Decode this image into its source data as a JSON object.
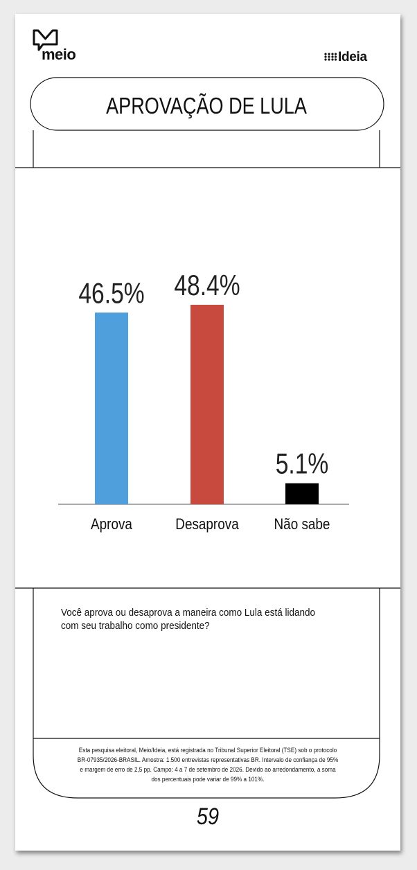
{
  "brand": {
    "left_logo": "meio",
    "right_logo": "Ideia"
  },
  "title": "APROVAÇÃO DE LULA",
  "chart_data": {
    "type": "bar",
    "categories": [
      "Aprova",
      "Desaprova",
      "Não sabe"
    ],
    "values": [
      46.5,
      48.4,
      5.1
    ],
    "value_labels": [
      "46.5%",
      "48.4%",
      "5.1%"
    ],
    "colors": [
      "#4f9fdc",
      "#c84a3e",
      "#000000"
    ],
    "title": "APROVAÇÃO DE LULA",
    "xlabel": "",
    "ylabel": "",
    "ylim": [
      0,
      55
    ],
    "grid": false,
    "legend": "none"
  },
  "question": "Você aprova ou desaprova a maneira como Lula está lidando com seu trabalho como presidente?",
  "footnote": "Esta pesquisa eleitoral, Meio/Ideia, está registrada no Tribunal Superior Eleitoral (TSE) sob o protocolo BR-07935/2026-BRASIL. Amostra: 1.500 entrevistas representativas BR. Intervalo de confiança de 95% e margem de erro de 2,5 pp. Campo: 4 a 7 de setembro de 2026. Devido ao arredondamento, a soma dos percentuais pode variar de 99% a 101%.",
  "page_number": "59"
}
